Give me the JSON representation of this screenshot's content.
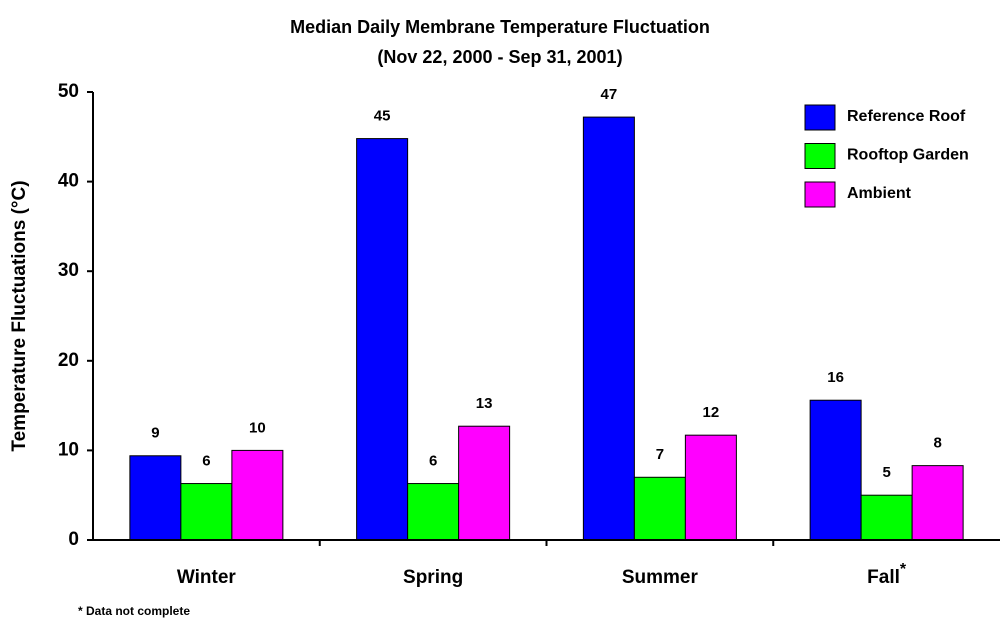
{
  "chart_data": {
    "type": "bar",
    "title": "Median Daily Membrane Temperature Fluctuation",
    "subtitle": "(Nov 22, 2000 - Sep 31, 2001)",
    "y_label": "Temperature Fluctuations (°C)",
    "categories": [
      "Winter",
      "Spring",
      "Summer",
      "Fall"
    ],
    "category_superscripts": [
      null,
      null,
      null,
      "*"
    ],
    "footnote": "* Data not complete",
    "series": [
      {
        "name": "Reference Roof",
        "color": "#0000ff",
        "values": [
          9.4,
          44.8,
          47.2,
          15.6
        ],
        "value_labels": [
          "9",
          "45",
          "47",
          "16"
        ]
      },
      {
        "name": "Rooftop Garden",
        "color": "#00ff00",
        "values": [
          6.3,
          6.3,
          7.0,
          5.0
        ],
        "value_labels": [
          "6",
          "6",
          "7",
          "5"
        ]
      },
      {
        "name": "Ambient",
        "color": "#ff00ff",
        "values": [
          10.0,
          12.7,
          11.7,
          8.3
        ],
        "value_labels": [
          "10",
          "13",
          "12",
          "8"
        ]
      }
    ],
    "ylim": [
      0,
      50
    ],
    "yticks": [
      0,
      10,
      20,
      30,
      40,
      50
    ],
    "grid": false,
    "legend": "top-right"
  }
}
